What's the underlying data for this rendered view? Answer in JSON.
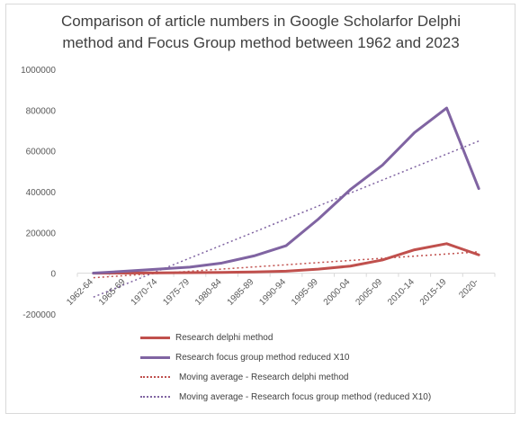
{
  "chart_data": {
    "type": "line",
    "title_lines": [
      "Comparison of article numbers in Google Scholarfor Delphi",
      "method and Focus Group method between 1962 and 2023"
    ],
    "xlabel": "",
    "ylabel": "",
    "ylim": [
      -200000,
      1000000
    ],
    "yticks": [
      "1000000",
      "800000",
      "600000",
      "400000",
      "200000",
      "0",
      "-200000"
    ],
    "ytick_values": [
      1000000,
      800000,
      600000,
      400000,
      200000,
      0,
      -200000
    ],
    "categories": [
      "1962-64",
      "1965-69",
      "1970-74",
      "1975-79",
      "1980-84",
      "1985-89",
      "1990-94",
      "1995-99",
      "2000-04",
      "2005-09",
      "2010-14",
      "2015-19",
      "2020-"
    ],
    "grid": false,
    "legend_position": "bottom",
    "series": [
      {
        "name": "Research delphi method",
        "style": "solid",
        "color": "#c0504d",
        "values": [
          200,
          1000,
          2000,
          3000,
          4000,
          6000,
          10000,
          20000,
          35000,
          65000,
          115000,
          145000,
          90000
        ]
      },
      {
        "name": "Research focus group method reduced X10",
        "style": "solid",
        "color": "#8064a2",
        "values": [
          500,
          10000,
          20000,
          30000,
          50000,
          85000,
          135000,
          265000,
          410000,
          530000,
          690000,
          810000,
          415000
        ]
      },
      {
        "name": "Moving average - Research delphi method",
        "style": "dotted",
        "color": "#c0504d",
        "trend": [
          -22000,
          105000
        ]
      },
      {
        "name": "Moving average - Research focus group method (reduced X10)",
        "style": "dotted",
        "color": "#8064a2",
        "trend": [
          -117000,
          648000
        ]
      }
    ]
  }
}
